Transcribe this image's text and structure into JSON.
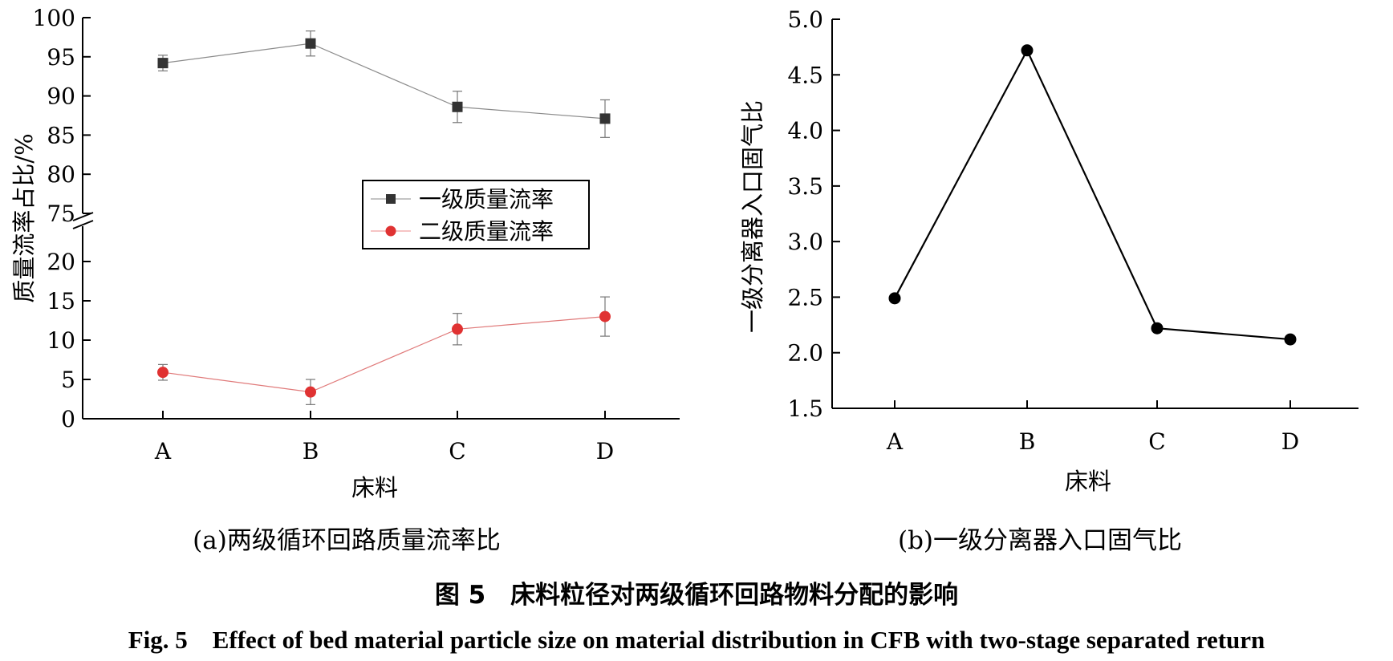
{
  "chart_data": [
    {
      "type": "line",
      "ylabel": "质量流率占比/%",
      "xlabel": "床料",
      "categories": [
        "A",
        "B",
        "C",
        "D"
      ],
      "y_axis_break": {
        "lower_range": [
          0,
          20
        ],
        "upper_range": [
          75,
          100
        ]
      },
      "yticks_lower": [
        0,
        5,
        10,
        15,
        20
      ],
      "yticks_upper": [
        75,
        80,
        85,
        90,
        95,
        100
      ],
      "legend_position": "center-right",
      "series": [
        {
          "name": "一级质量流率",
          "marker": "square",
          "color": "#333333",
          "values": [
            94.2,
            96.7,
            88.6,
            87.1
          ],
          "errors": [
            1.0,
            1.6,
            2.0,
            2.4
          ]
        },
        {
          "name": "二级质量流率",
          "marker": "circle",
          "color": "#e03232",
          "values": [
            5.9,
            3.4,
            11.4,
            13.0
          ],
          "errors": [
            1.0,
            1.6,
            2.0,
            2.5
          ]
        }
      ],
      "caption": "(a)两级循环回路质量流率比"
    },
    {
      "type": "line",
      "ylabel": "一级分离器入口固气比",
      "xlabel": "床料",
      "categories": [
        "A",
        "B",
        "C",
        "D"
      ],
      "ylim": [
        1.5,
        5.0
      ],
      "yticks": [
        "1.5",
        "2.0",
        "2.5",
        "3.0",
        "3.5",
        "4.0",
        "4.5",
        "5.0"
      ],
      "series": [
        {
          "marker": "circle",
          "color": "#000000",
          "values": [
            2.49,
            4.72,
            2.22,
            2.12
          ]
        }
      ],
      "caption": "(b)一级分离器入口固气比"
    }
  ],
  "figure_caption_cn": "图 5　床料粒径对两级循环回路物料分配的影响",
  "figure_caption_en": "Fig. 5　Effect of bed material particle size on material distribution in CFB with two-stage separated return"
}
